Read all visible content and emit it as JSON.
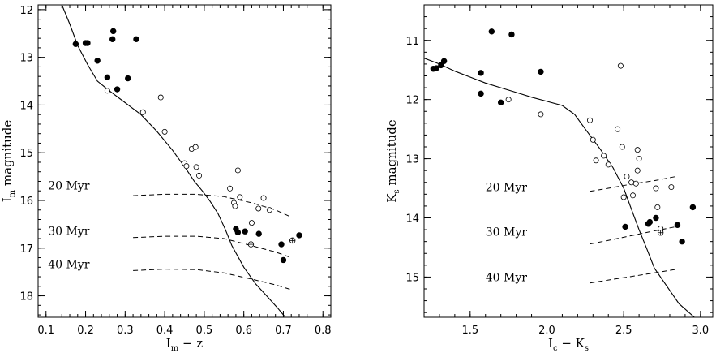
{
  "chart_data": [
    {
      "type": "scatter",
      "xlabel_main": "I",
      "xlabel_sub": "m",
      "xlabel_rest": " − z",
      "ylabel_main": "I",
      "ylabel_sub": "m",
      "ylabel_rest": " magnitude",
      "xlim": [
        0.08,
        0.82
      ],
      "ylim": [
        18.45,
        11.9
      ],
      "xticks": [
        0.1,
        0.2,
        0.3,
        0.4,
        0.5,
        0.6,
        0.7,
        0.8
      ],
      "xtick_labels": [
        "0.1",
        "0.2",
        "0.3",
        "0.4",
        "0.5",
        "0.6",
        "0.7",
        "0.8"
      ],
      "xminor_step": 0.02,
      "yticks": [
        12,
        13,
        14,
        15,
        16,
        17,
        18
      ],
      "ytick_labels": [
        "12",
        "13",
        "14",
        "15",
        "16",
        "17",
        "18"
      ],
      "yminor_step": 0.2,
      "series": [
        {
          "marker": "filled-circle",
          "points": [
            [
              0.175,
              12.72
            ],
            [
              0.2,
              12.7
            ],
            [
              0.205,
              12.7
            ],
            [
              0.23,
              13.07
            ],
            [
              0.255,
              13.42
            ],
            [
              0.268,
              12.62
            ],
            [
              0.27,
              12.45
            ],
            [
              0.28,
              13.67
            ],
            [
              0.307,
              13.44
            ],
            [
              0.328,
              12.62
            ],
            [
              0.58,
              16.6
            ],
            [
              0.585,
              16.67
            ],
            [
              0.603,
              16.65
            ],
            [
              0.638,
              16.7
            ],
            [
              0.695,
              16.92
            ],
            [
              0.7,
              17.25
            ],
            [
              0.74,
              16.73
            ]
          ]
        },
        {
          "marker": "open-circle",
          "points": [
            [
              0.255,
              13.7
            ],
            [
              0.345,
              14.15
            ],
            [
              0.39,
              13.84
            ],
            [
              0.4,
              14.56
            ],
            [
              0.45,
              15.22
            ],
            [
              0.455,
              15.28
            ],
            [
              0.468,
              14.92
            ],
            [
              0.478,
              14.88
            ],
            [
              0.48,
              15.3
            ],
            [
              0.487,
              15.48
            ],
            [
              0.565,
              15.75
            ],
            [
              0.575,
              16.05
            ],
            [
              0.578,
              16.12
            ],
            [
              0.585,
              15.37
            ],
            [
              0.59,
              15.93
            ],
            [
              0.62,
              16.47
            ],
            [
              0.637,
              16.17
            ],
            [
              0.65,
              15.95
            ],
            [
              0.665,
              16.2
            ]
          ]
        },
        {
          "marker": "crossed-circle",
          "points": [
            [
              0.618,
              16.92
            ],
            [
              0.723,
              16.84
            ]
          ]
        }
      ],
      "sequence_curve": [
        [
          0.14,
          11.9
        ],
        [
          0.16,
          12.3
        ],
        [
          0.18,
          12.75
        ],
        [
          0.205,
          13.15
        ],
        [
          0.23,
          13.5
        ],
        [
          0.26,
          13.7
        ],
        [
          0.3,
          13.95
        ],
        [
          0.34,
          14.2
        ],
        [
          0.38,
          14.55
        ],
        [
          0.42,
          14.95
        ],
        [
          0.455,
          15.35
        ],
        [
          0.475,
          15.6
        ],
        [
          0.495,
          15.8
        ],
        [
          0.515,
          16.02
        ],
        [
          0.535,
          16.28
        ],
        [
          0.553,
          16.6
        ],
        [
          0.57,
          16.95
        ],
        [
          0.6,
          17.4
        ],
        [
          0.63,
          17.75
        ],
        [
          0.66,
          18.02
        ],
        [
          0.685,
          18.25
        ],
        [
          0.705,
          18.45
        ]
      ],
      "isochrones": [
        {
          "label": "20 Myr",
          "label_at": [
            0.105,
            15.77
          ],
          "points": [
            [
              0.32,
              15.9
            ],
            [
              0.4,
              15.87
            ],
            [
              0.48,
              15.87
            ],
            [
              0.55,
              15.92
            ],
            [
              0.62,
              16.05
            ],
            [
              0.68,
              16.2
            ],
            [
              0.72,
              16.35
            ]
          ]
        },
        {
          "label": "30 Myr",
          "label_at": [
            0.105,
            16.72
          ],
          "points": [
            [
              0.32,
              16.78
            ],
            [
              0.4,
              16.75
            ],
            [
              0.48,
              16.75
            ],
            [
              0.55,
              16.8
            ],
            [
              0.62,
              16.95
            ],
            [
              0.68,
              17.08
            ],
            [
              0.72,
              17.2
            ]
          ]
        },
        {
          "label": "40 Myr",
          "label_at": [
            0.105,
            17.42
          ],
          "points": [
            [
              0.32,
              17.47
            ],
            [
              0.4,
              17.44
            ],
            [
              0.48,
              17.45
            ],
            [
              0.55,
              17.52
            ],
            [
              0.62,
              17.65
            ],
            [
              0.68,
              17.77
            ],
            [
              0.72,
              17.87
            ]
          ]
        }
      ]
    },
    {
      "type": "scatter",
      "xlabel_main": "I",
      "xlabel_sub": "c",
      "xlabel_rest": " − K",
      "xlabel_sub2": "s",
      "ylabel_main": "K",
      "ylabel_sub": "s",
      "ylabel_rest": " magnitude",
      "xlim": [
        1.2,
        3.08
      ],
      "ylim": [
        15.68,
        10.4
      ],
      "xticks": [
        1.5,
        2.0,
        2.5,
        3.0
      ],
      "xtick_labels": [
        "1.5",
        "2.0",
        "2.5",
        "3.0"
      ],
      "xminor_step": 0.1,
      "yticks": [
        11,
        12,
        13,
        14,
        15
      ],
      "ytick_labels": [
        "11",
        "12",
        "13",
        "14",
        "15"
      ],
      "yminor_step": 0.2,
      "series": [
        {
          "marker": "filled-circle",
          "points": [
            [
              1.26,
              11.48
            ],
            [
              1.28,
              11.47
            ],
            [
              1.31,
              11.42
            ],
            [
              1.33,
              11.35
            ],
            [
              1.57,
              11.55
            ],
            [
              1.57,
              11.9
            ],
            [
              1.64,
              10.85
            ],
            [
              1.7,
              12.05
            ],
            [
              1.77,
              10.9
            ],
            [
              1.96,
              11.53
            ],
            [
              2.51,
              14.15
            ],
            [
              2.66,
              14.1
            ],
            [
              2.67,
              14.07
            ],
            [
              2.71,
              14.0
            ],
            [
              2.74,
              14.2
            ],
            [
              2.85,
              14.12
            ],
            [
              2.88,
              14.4
            ],
            [
              2.95,
              13.82
            ]
          ]
        },
        {
          "marker": "open-circle",
          "points": [
            [
              1.75,
              12.0
            ],
            [
              1.96,
              12.25
            ],
            [
              2.28,
              12.35
            ],
            [
              2.3,
              12.68
            ],
            [
              2.32,
              13.03
            ],
            [
              2.37,
              12.95
            ],
            [
              2.4,
              13.1
            ],
            [
              2.46,
              12.5
            ],
            [
              2.48,
              11.43
            ],
            [
              2.49,
              12.8
            ],
            [
              2.5,
              13.65
            ],
            [
              2.52,
              13.3
            ],
            [
              2.55,
              13.4
            ],
            [
              2.56,
              13.62
            ],
            [
              2.58,
              13.42
            ],
            [
              2.59,
              13.2
            ],
            [
              2.59,
              12.85
            ],
            [
              2.6,
              13.0
            ],
            [
              2.71,
              13.5
            ],
            [
              2.72,
              13.82
            ],
            [
              2.74,
              14.18
            ],
            [
              2.81,
              13.48
            ]
          ]
        },
        {
          "marker": "crossed-circle",
          "points": [
            [
              2.74,
              14.25
            ]
          ]
        }
      ],
      "sequence_curve": [
        [
          1.2,
          11.3
        ],
        [
          1.3,
          11.4
        ],
        [
          1.4,
          11.52
        ],
        [
          1.5,
          11.62
        ],
        [
          1.6,
          11.72
        ],
        [
          1.7,
          11.8
        ],
        [
          1.8,
          11.88
        ],
        [
          1.9,
          11.96
        ],
        [
          2.0,
          12.03
        ],
        [
          2.1,
          12.1
        ],
        [
          2.18,
          12.25
        ],
        [
          2.25,
          12.5
        ],
        [
          2.35,
          12.85
        ],
        [
          2.43,
          13.15
        ],
        [
          2.5,
          13.5
        ],
        [
          2.55,
          13.85
        ],
        [
          2.6,
          14.2
        ],
        [
          2.65,
          14.52
        ],
        [
          2.7,
          14.85
        ],
        [
          2.78,
          15.15
        ],
        [
          2.86,
          15.45
        ],
        [
          2.96,
          15.68
        ]
      ],
      "isochrones": [
        {
          "label": "20 Myr",
          "label_at": [
            1.6,
            13.55
          ],
          "points": [
            [
              2.28,
              13.55
            ],
            [
              2.4,
              13.5
            ],
            [
              2.55,
              13.43
            ],
            [
              2.7,
              13.37
            ],
            [
              2.84,
              13.3
            ]
          ]
        },
        {
          "label": "30 Myr",
          "label_at": [
            1.6,
            14.3
          ],
          "points": [
            [
              2.28,
              14.44
            ],
            [
              2.4,
              14.38
            ],
            [
              2.55,
              14.3
            ],
            [
              2.7,
              14.22
            ],
            [
              2.84,
              14.15
            ]
          ]
        },
        {
          "label": "40 Myr",
          "label_at": [
            1.6,
            15.07
          ],
          "points": [
            [
              2.28,
              15.1
            ],
            [
              2.4,
              15.05
            ],
            [
              2.55,
              14.99
            ],
            [
              2.7,
              14.93
            ],
            [
              2.84,
              14.87
            ]
          ]
        }
      ]
    }
  ]
}
